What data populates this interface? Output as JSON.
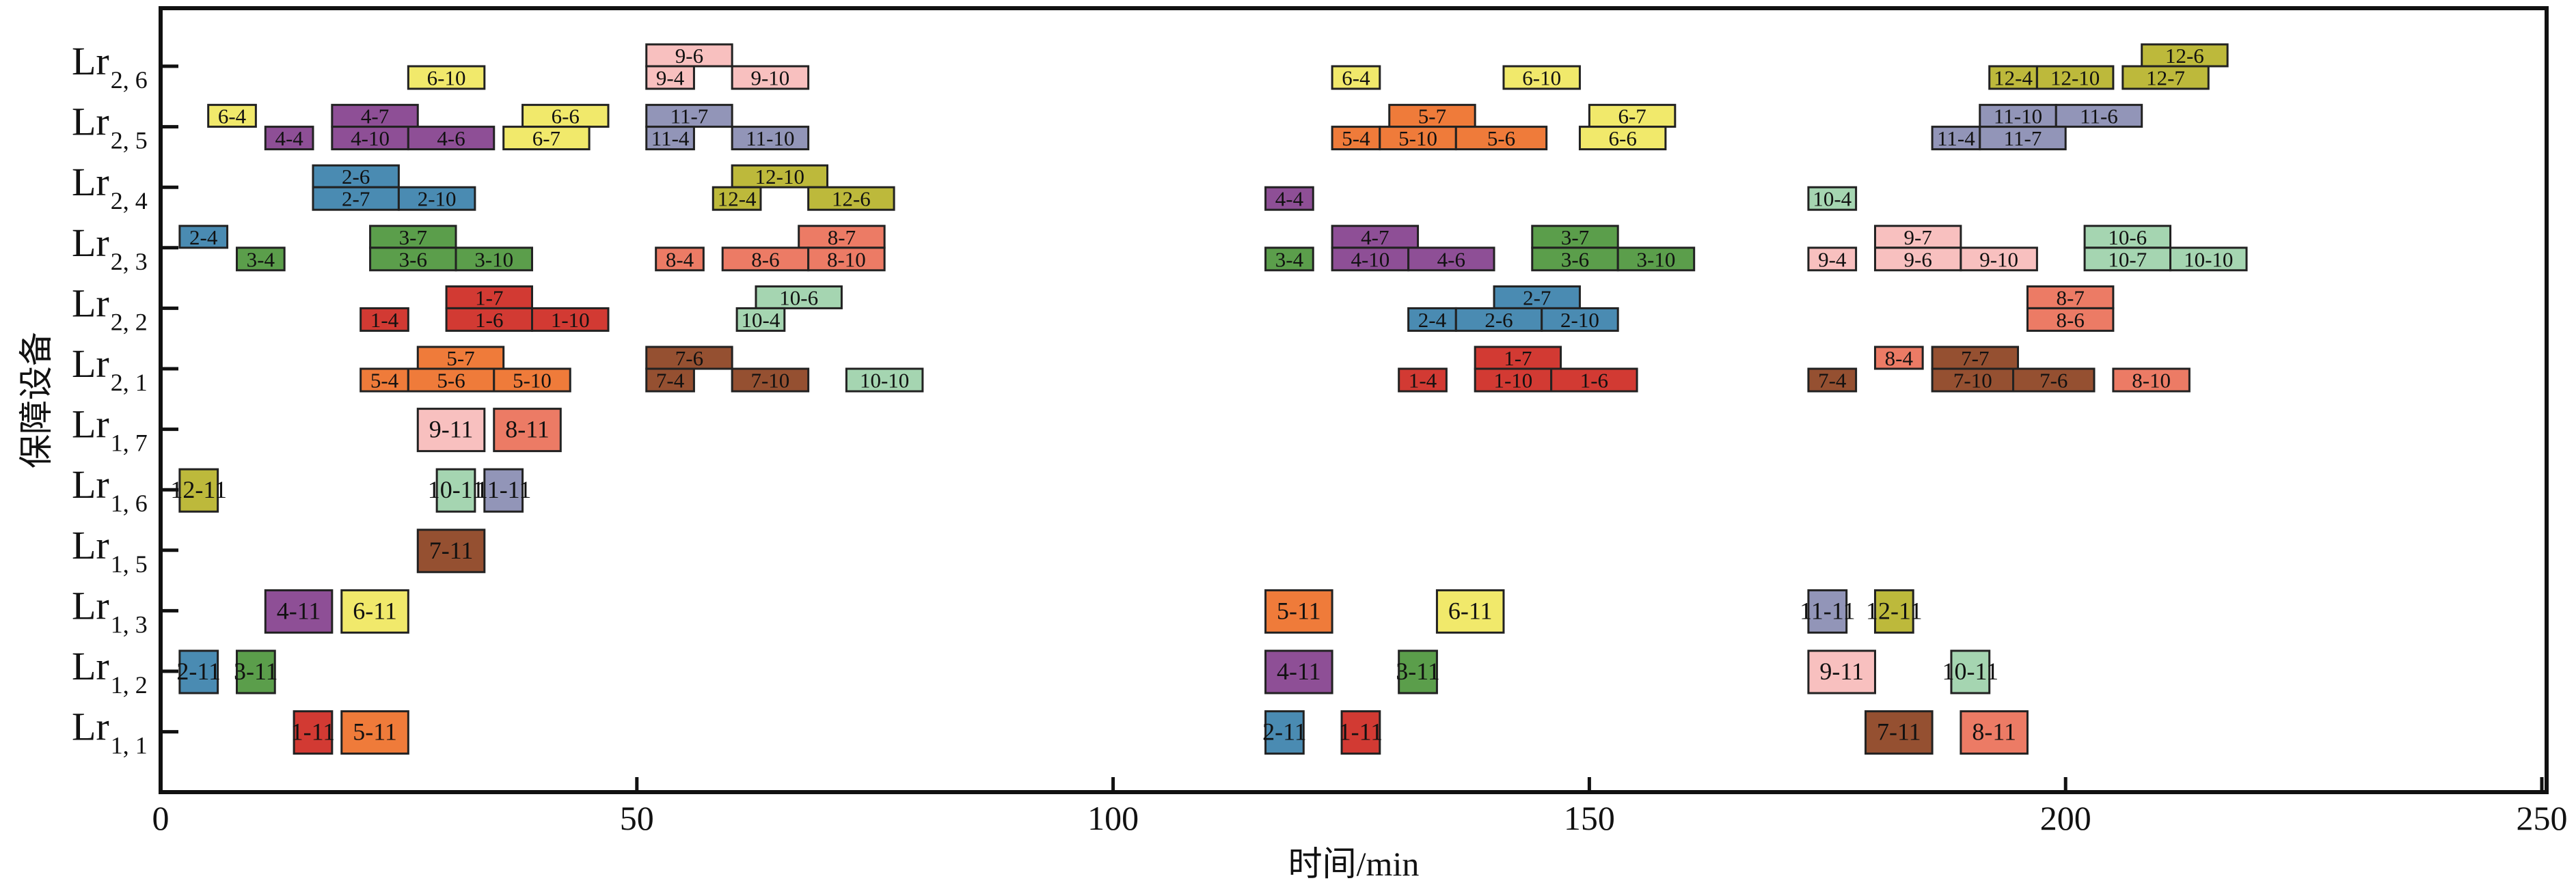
{
  "chart_data": {
    "type": "gantt",
    "xlabel": "时间/min",
    "ylabel": "保障设备",
    "xlim": [
      0,
      250
    ],
    "xticks": [
      0,
      50,
      100,
      150,
      200,
      250
    ],
    "grid": false,
    "rows": [
      {
        "id": "Lr2,6",
        "main": "Lr",
        "sub": "2, 6"
      },
      {
        "id": "Lr2,5",
        "main": "Lr",
        "sub": "2, 5"
      },
      {
        "id": "Lr2,4",
        "main": "Lr",
        "sub": "2, 4"
      },
      {
        "id": "Lr2,3",
        "main": "Lr",
        "sub": "2, 3"
      },
      {
        "id": "Lr2,2",
        "main": "Lr",
        "sub": "2, 2"
      },
      {
        "id": "Lr2,1",
        "main": "Lr",
        "sub": "2, 1"
      },
      {
        "id": "Lr1,7",
        "main": "Lr",
        "sub": "1, 7"
      },
      {
        "id": "Lr1,6",
        "main": "Lr",
        "sub": "1, 6"
      },
      {
        "id": "Lr1,5",
        "main": "Lr",
        "sub": "1, 5"
      },
      {
        "id": "Lr1,3",
        "main": "Lr",
        "sub": "1, 3"
      },
      {
        "id": "Lr1,2",
        "main": "Lr",
        "sub": "1, 2"
      },
      {
        "id": "Lr1,1",
        "main": "Lr",
        "sub": "1, 1"
      }
    ],
    "job_colors": {
      "1": "#d23a33",
      "2": "#4a8bb2",
      "3": "#5b9e4b",
      "4": "#8e4f96",
      "5": "#ef7b3a",
      "6": "#f1e96b",
      "7": "#955031",
      "8": "#ec7b65",
      "9": "#f8c0bf",
      "10": "#a5d5b1",
      "11": "#9295b8",
      "12": "#bdb93b"
    },
    "tasks": [
      {
        "row": "Lr2,6",
        "lane": "lower",
        "label": "6-10",
        "start": 26,
        "end": 34
      },
      {
        "row": "Lr2,6",
        "lane": "upper",
        "label": "9-6",
        "start": 51,
        "end": 60
      },
      {
        "row": "Lr2,6",
        "lane": "lower",
        "label": "9-4",
        "start": 51,
        "end": 56
      },
      {
        "row": "Lr2,6",
        "lane": "lower",
        "label": "9-10",
        "start": 60,
        "end": 68
      },
      {
        "row": "Lr2,6",
        "lane": "lower",
        "label": "6-4",
        "start": 123,
        "end": 128
      },
      {
        "row": "Lr2,6",
        "lane": "lower",
        "label": "6-10",
        "start": 141,
        "end": 149
      },
      {
        "row": "Lr2,6",
        "lane": "upper",
        "label": "12-6",
        "start": 208,
        "end": 217
      },
      {
        "row": "Lr2,6",
        "lane": "lower",
        "label": "12-4",
        "start": 192,
        "end": 197
      },
      {
        "row": "Lr2,6",
        "lane": "lower",
        "label": "12-10",
        "start": 197,
        "end": 205
      },
      {
        "row": "Lr2,6",
        "lane": "lower",
        "label": "12-7",
        "start": 206,
        "end": 215
      },
      {
        "row": "Lr2,5",
        "lane": "upper",
        "label": "6-4",
        "start": 5,
        "end": 10
      },
      {
        "row": "Lr2,5",
        "lane": "lower",
        "label": "4-4",
        "start": 11,
        "end": 16
      },
      {
        "row": "Lr2,5",
        "lane": "upper",
        "label": "4-7",
        "start": 18,
        "end": 27
      },
      {
        "row": "Lr2,5",
        "lane": "lower",
        "label": "4-10",
        "start": 18,
        "end": 26
      },
      {
        "row": "Lr2,5",
        "lane": "lower",
        "label": "4-6",
        "start": 26,
        "end": 35
      },
      {
        "row": "Lr2,5",
        "lane": "upper",
        "label": "6-6",
        "start": 38,
        "end": 47
      },
      {
        "row": "Lr2,5",
        "lane": "lower",
        "label": "6-7",
        "start": 36,
        "end": 45
      },
      {
        "row": "Lr2,5",
        "lane": "upper",
        "label": "11-7",
        "start": 51,
        "end": 60
      },
      {
        "row": "Lr2,5",
        "lane": "lower",
        "label": "11-4",
        "start": 51,
        "end": 56
      },
      {
        "row": "Lr2,5",
        "lane": "lower",
        "label": "11-10",
        "start": 60,
        "end": 68
      },
      {
        "row": "Lr2,5",
        "lane": "upper",
        "label": "5-7",
        "start": 129,
        "end": 138
      },
      {
        "row": "Lr2,5",
        "lane": "lower",
        "label": "5-4",
        "start": 123,
        "end": 128
      },
      {
        "row": "Lr2,5",
        "lane": "lower",
        "label": "5-10",
        "start": 128,
        "end": 136
      },
      {
        "row": "Lr2,5",
        "lane": "lower",
        "label": "5-6",
        "start": 136,
        "end": 145.5
      },
      {
        "row": "Lr2,5",
        "lane": "upper",
        "label": "6-7",
        "start": 150,
        "end": 159
      },
      {
        "row": "Lr2,5",
        "lane": "lower",
        "label": "6-6",
        "start": 149,
        "end": 158
      },
      {
        "row": "Lr2,5",
        "lane": "upper",
        "label": "11-10",
        "start": 191,
        "end": 199
      },
      {
        "row": "Lr2,5",
        "lane": "upper",
        "label": "11-6",
        "start": 199,
        "end": 208
      },
      {
        "row": "Lr2,5",
        "lane": "lower",
        "label": "11-4",
        "start": 186,
        "end": 191
      },
      {
        "row": "Lr2,5",
        "lane": "lower",
        "label": "11-7",
        "start": 191,
        "end": 200
      },
      {
        "row": "Lr2,4",
        "lane": "upper",
        "label": "2-6",
        "start": 16,
        "end": 25
      },
      {
        "row": "Lr2,4",
        "lane": "lower",
        "label": "2-7",
        "start": 16,
        "end": 25
      },
      {
        "row": "Lr2,4",
        "lane": "lower",
        "label": "2-10",
        "start": 25,
        "end": 33
      },
      {
        "row": "Lr2,4",
        "lane": "upper",
        "label": "12-10",
        "start": 60,
        "end": 70
      },
      {
        "row": "Lr2,4",
        "lane": "lower",
        "label": "12-4",
        "start": 58,
        "end": 63
      },
      {
        "row": "Lr2,4",
        "lane": "lower",
        "label": "12-6",
        "start": 68,
        "end": 77
      },
      {
        "row": "Lr2,4",
        "lane": "lower",
        "label": "4-4",
        "start": 116,
        "end": 121
      },
      {
        "row": "Lr2,4",
        "lane": "lower",
        "label": "10-4",
        "start": 173,
        "end": 178
      },
      {
        "row": "Lr2,3",
        "lane": "upper",
        "label": "2-4",
        "start": 2,
        "end": 7
      },
      {
        "row": "Lr2,3",
        "lane": "lower",
        "label": "3-4",
        "start": 8,
        "end": 13
      },
      {
        "row": "Lr2,3",
        "lane": "upper",
        "label": "3-7",
        "start": 22,
        "end": 31
      },
      {
        "row": "Lr2,3",
        "lane": "lower",
        "label": "3-6",
        "start": 22,
        "end": 31
      },
      {
        "row": "Lr2,3",
        "lane": "lower",
        "label": "3-10",
        "start": 31,
        "end": 39
      },
      {
        "row": "Lr2,3",
        "lane": "lower",
        "label": "8-4",
        "start": 52,
        "end": 57
      },
      {
        "row": "Lr2,3",
        "lane": "upper",
        "label": "8-7",
        "start": 67,
        "end": 76
      },
      {
        "row": "Lr2,3",
        "lane": "lower",
        "label": "8-6",
        "start": 59,
        "end": 68
      },
      {
        "row": "Lr2,3",
        "lane": "lower",
        "label": "8-10",
        "start": 68,
        "end": 76
      },
      {
        "row": "Lr2,3",
        "lane": "lower",
        "label": "3-4",
        "start": 116,
        "end": 121
      },
      {
        "row": "Lr2,3",
        "lane": "upper",
        "label": "4-7",
        "start": 123,
        "end": 132
      },
      {
        "row": "Lr2,3",
        "lane": "lower",
        "label": "4-10",
        "start": 123,
        "end": 131
      },
      {
        "row": "Lr2,3",
        "lane": "lower",
        "label": "4-6",
        "start": 131,
        "end": 140
      },
      {
        "row": "Lr2,3",
        "lane": "upper",
        "label": "3-7",
        "start": 144,
        "end": 153
      },
      {
        "row": "Lr2,3",
        "lane": "lower",
        "label": "3-6",
        "start": 144,
        "end": 153
      },
      {
        "row": "Lr2,3",
        "lane": "lower",
        "label": "3-10",
        "start": 153,
        "end": 161
      },
      {
        "row": "Lr2,3",
        "lane": "lower",
        "label": "9-4",
        "start": 173,
        "end": 178
      },
      {
        "row": "Lr2,3",
        "lane": "upper",
        "label": "9-7",
        "start": 180,
        "end": 189
      },
      {
        "row": "Lr2,3",
        "lane": "lower",
        "label": "9-6",
        "start": 180,
        "end": 189
      },
      {
        "row": "Lr2,3",
        "lane": "lower",
        "label": "9-10",
        "start": 189,
        "end": 197
      },
      {
        "row": "Lr2,3",
        "lane": "upper",
        "label": "10-6",
        "start": 202,
        "end": 211
      },
      {
        "row": "Lr2,3",
        "lane": "lower",
        "label": "10-7",
        "start": 202,
        "end": 211
      },
      {
        "row": "Lr2,3",
        "lane": "lower",
        "label": "10-10",
        "start": 211,
        "end": 219
      },
      {
        "row": "Lr2,2",
        "lane": "lower",
        "label": "1-4",
        "start": 21,
        "end": 26
      },
      {
        "row": "Lr2,2",
        "lane": "upper",
        "label": "1-7",
        "start": 30,
        "end": 39
      },
      {
        "row": "Lr2,2",
        "lane": "lower",
        "label": "1-6",
        "start": 30,
        "end": 39
      },
      {
        "row": "Lr2,2",
        "lane": "lower",
        "label": "1-10",
        "start": 39,
        "end": 47
      },
      {
        "row": "Lr2,2",
        "lane": "upper",
        "label": "10-6",
        "start": 62.5,
        "end": 71.5
      },
      {
        "row": "Lr2,2",
        "lane": "lower",
        "label": "10-4",
        "start": 60.5,
        "end": 65.5
      },
      {
        "row": "Lr2,2",
        "lane": "upper",
        "label": "2-7",
        "start": 140,
        "end": 149
      },
      {
        "row": "Lr2,2",
        "lane": "lower",
        "label": "2-4",
        "start": 131,
        "end": 136
      },
      {
        "row": "Lr2,2",
        "lane": "lower",
        "label": "2-6",
        "start": 136,
        "end": 145
      },
      {
        "row": "Lr2,2",
        "lane": "lower",
        "label": "2-10",
        "start": 145,
        "end": 153
      },
      {
        "row": "Lr2,2",
        "lane": "upper",
        "label": "8-7",
        "start": 196,
        "end": 205
      },
      {
        "row": "Lr2,2",
        "lane": "lower",
        "label": "8-6",
        "start": 196,
        "end": 205
      },
      {
        "row": "Lr2,1",
        "lane": "upper",
        "label": "5-7",
        "start": 27,
        "end": 36
      },
      {
        "row": "Lr2,1",
        "lane": "lower",
        "label": "5-4",
        "start": 21,
        "end": 26
      },
      {
        "row": "Lr2,1",
        "lane": "lower",
        "label": "5-6",
        "start": 26,
        "end": 35
      },
      {
        "row": "Lr2,1",
        "lane": "lower",
        "label": "5-10",
        "start": 35,
        "end": 43
      },
      {
        "row": "Lr2,1",
        "lane": "upper",
        "label": "7-6",
        "start": 51,
        "end": 60
      },
      {
        "row": "Lr2,1",
        "lane": "lower",
        "label": "7-4",
        "start": 51,
        "end": 56
      },
      {
        "row": "Lr2,1",
        "lane": "lower",
        "label": "7-10",
        "start": 60,
        "end": 68
      },
      {
        "row": "Lr2,1",
        "lane": "lower",
        "label": "10-10",
        "start": 72,
        "end": 80
      },
      {
        "row": "Lr2,1",
        "lane": "lower",
        "label": "1-4",
        "start": 130,
        "end": 135
      },
      {
        "row": "Lr2,1",
        "lane": "upper",
        "label": "1-7",
        "start": 138,
        "end": 147
      },
      {
        "row": "Lr2,1",
        "lane": "lower",
        "label": "1-10",
        "start": 138,
        "end": 146
      },
      {
        "row": "Lr2,1",
        "lane": "lower",
        "label": "1-6",
        "start": 146,
        "end": 155
      },
      {
        "row": "Lr2,1",
        "lane": "lower",
        "label": "7-4",
        "start": 173,
        "end": 178
      },
      {
        "row": "Lr2,1",
        "lane": "upper",
        "label": "8-4",
        "start": 180,
        "end": 185
      },
      {
        "row": "Lr2,1",
        "lane": "upper",
        "label": "7-7",
        "start": 186,
        "end": 195
      },
      {
        "row": "Lr2,1",
        "lane": "lower",
        "label": "7-10",
        "start": 186,
        "end": 194.5
      },
      {
        "row": "Lr2,1",
        "lane": "lower",
        "label": "7-6",
        "start": 194.5,
        "end": 203
      },
      {
        "row": "Lr2,1",
        "lane": "lower",
        "label": "8-10",
        "start": 205,
        "end": 213
      },
      {
        "row": "Lr1,7",
        "lane": "full",
        "label": "9-11",
        "start": 27,
        "end": 34
      },
      {
        "row": "Lr1,7",
        "lane": "full",
        "label": "8-11",
        "start": 35,
        "end": 42
      },
      {
        "row": "Lr1,6",
        "lane": "full",
        "label": "12-11",
        "start": 2,
        "end": 6
      },
      {
        "row": "Lr1,6",
        "lane": "full",
        "label": "10-11",
        "start": 29,
        "end": 33
      },
      {
        "row": "Lr1,6",
        "lane": "full",
        "label": "11-11",
        "start": 34,
        "end": 38
      },
      {
        "row": "Lr1,5",
        "lane": "full",
        "label": "7-11",
        "start": 27,
        "end": 34
      },
      {
        "row": "Lr1,3",
        "lane": "full",
        "label": "4-11",
        "start": 11,
        "end": 18
      },
      {
        "row": "Lr1,3",
        "lane": "full",
        "label": "6-11",
        "start": 19,
        "end": 26
      },
      {
        "row": "Lr1,3",
        "lane": "full",
        "label": "5-11",
        "start": 116,
        "end": 123
      },
      {
        "row": "Lr1,3",
        "lane": "full",
        "label": "6-11",
        "start": 134,
        "end": 141
      },
      {
        "row": "Lr1,3",
        "lane": "full",
        "label": "11-11",
        "start": 173,
        "end": 177
      },
      {
        "row": "Lr1,3",
        "lane": "full",
        "label": "12-11",
        "start": 180,
        "end": 184
      },
      {
        "row": "Lr1,2",
        "lane": "full",
        "label": "2-11",
        "start": 2,
        "end": 6
      },
      {
        "row": "Lr1,2",
        "lane": "full",
        "label": "3-11",
        "start": 8,
        "end": 12
      },
      {
        "row": "Lr1,2",
        "lane": "full",
        "label": "4-11",
        "start": 116,
        "end": 123
      },
      {
        "row": "Lr1,2",
        "lane": "full",
        "label": "3-11",
        "start": 130,
        "end": 134
      },
      {
        "row": "Lr1,2",
        "lane": "full",
        "label": "9-11",
        "start": 173,
        "end": 180
      },
      {
        "row": "Lr1,2",
        "lane": "full",
        "label": "10-11",
        "start": 188,
        "end": 192
      },
      {
        "row": "Lr1,1",
        "lane": "full",
        "label": "1-11",
        "start": 14,
        "end": 18
      },
      {
        "row": "Lr1,1",
        "lane": "full",
        "label": "5-11",
        "start": 19,
        "end": 26
      },
      {
        "row": "Lr1,1",
        "lane": "full",
        "label": "2-11",
        "start": 116,
        "end": 120
      },
      {
        "row": "Lr1,1",
        "lane": "full",
        "label": "1-11",
        "start": 124,
        "end": 128
      },
      {
        "row": "Lr1,1",
        "lane": "full",
        "label": "7-11",
        "start": 179,
        "end": 186
      },
      {
        "row": "Lr1,1",
        "lane": "full",
        "label": "8-11",
        "start": 189,
        "end": 196
      }
    ]
  }
}
